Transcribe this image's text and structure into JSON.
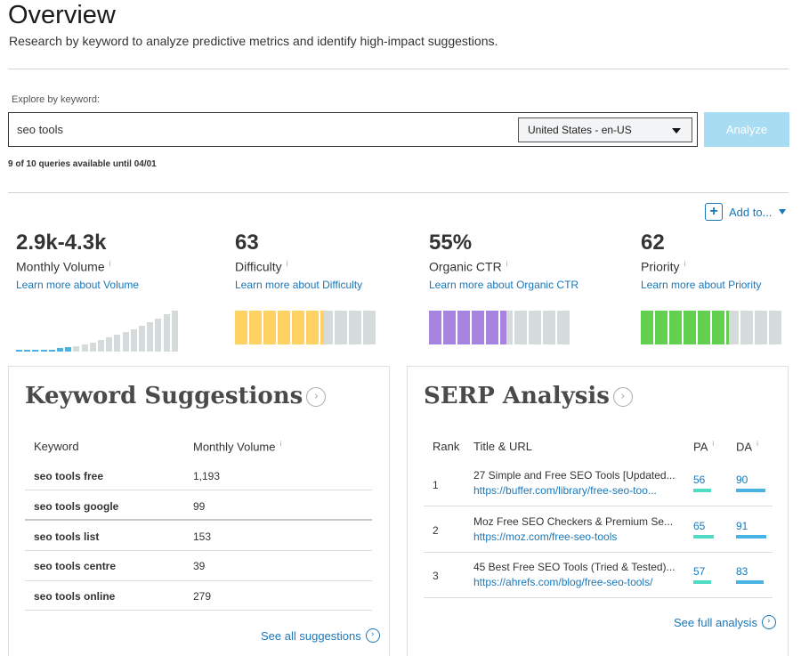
{
  "header": {
    "title": "Overview",
    "subtitle": "Research by keyword to analyze predictive metrics and identify high-impact suggestions."
  },
  "search": {
    "label": "Explore by keyword:",
    "value": "seo tools",
    "locale": "United States - en-US",
    "analyze_label": "Analyze",
    "queries_note": "9 of 10 queries available until 04/01"
  },
  "add_to": {
    "label": "Add to..."
  },
  "metrics": [
    {
      "value": "2.9k-4.3k",
      "label": "Monthly Volume",
      "link": "Learn more about Volume"
    },
    {
      "value": "63",
      "label": "Difficulty",
      "link": "Learn more about Difficulty",
      "score": 63,
      "color": "#ffd263"
    },
    {
      "value": "55%",
      "label": "Organic CTR",
      "link": "Learn more about Organic CTR",
      "score": 55,
      "color": "#a884e0"
    },
    {
      "value": "62",
      "label": "Priority",
      "link": "Learn more about Priority",
      "score": 62,
      "color": "#62d04e"
    }
  ],
  "info_glyph": "i",
  "keyword_suggestions": {
    "title": "Keyword Suggestions",
    "columns": [
      "Keyword",
      "Monthly Volume"
    ],
    "rows": [
      {
        "keyword": "seo tools free",
        "volume": "1,193"
      },
      {
        "keyword": "seo tools google",
        "volume": "99"
      },
      {
        "keyword": "seo tools list",
        "volume": "153"
      },
      {
        "keyword": "seo tools centre",
        "volume": "39"
      },
      {
        "keyword": "seo tools online",
        "volume": "279"
      }
    ],
    "see_all": "See all suggestions"
  },
  "serp": {
    "title": "SERP Analysis",
    "columns": [
      "Rank",
      "Title & URL",
      "PA",
      "DA"
    ],
    "rows": [
      {
        "rank": "1",
        "title": "27 Simple and Free SEO Tools [Updated...",
        "url": "https://buffer.com/library/free-seo-too...",
        "pa": "56",
        "da": "90"
      },
      {
        "rank": "2",
        "title": "Moz Free SEO Checkers & Premium Se...",
        "url": "https://moz.com/free-seo-tools",
        "pa": "65",
        "da": "91"
      },
      {
        "rank": "3",
        "title": "45 Best Free SEO Tools (Tried & Tested)...",
        "url": "https://ahrefs.com/blog/free-seo-tools/",
        "pa": "57",
        "da": "83"
      }
    ],
    "see_full": "See full analysis"
  }
}
